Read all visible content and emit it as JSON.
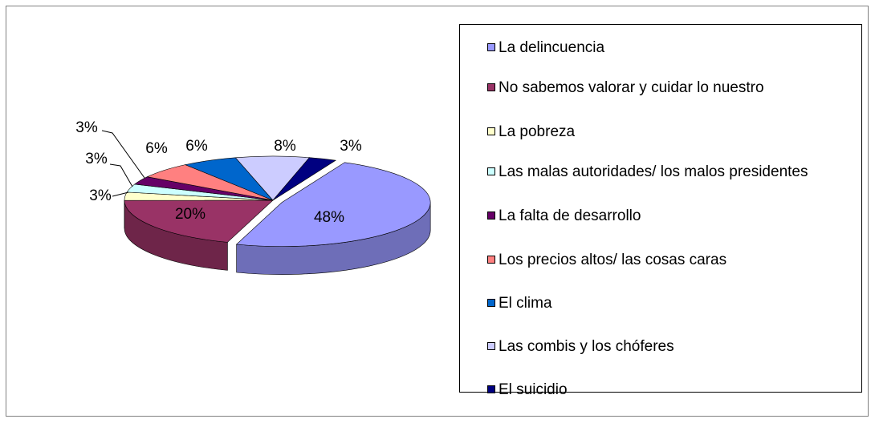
{
  "chart_data": {
    "type": "pie",
    "categories": [
      "La delincuencia",
      "No sabemos valorar y cuidar lo nuestro",
      "La pobreza",
      "Las malas autoridades/ los malos presidentes",
      "La falta de desarrollo",
      "Los precios altos/ las cosas caras",
      "El clima",
      "Las combis y los chóferes",
      "El suicidio"
    ],
    "values": [
      48,
      20,
      3,
      3,
      3,
      6,
      6,
      8,
      3
    ],
    "value_labels": [
      "48%",
      "20%",
      "3%",
      "3%",
      "3%",
      "6%",
      "6%",
      "8%",
      "3%"
    ],
    "colors": [
      "#9999ff",
      "#993366",
      "#ffffcc",
      "#ccffff",
      "#660066",
      "#ff8080",
      "#0066cc",
      "#ccccff",
      "#000080"
    ]
  }
}
